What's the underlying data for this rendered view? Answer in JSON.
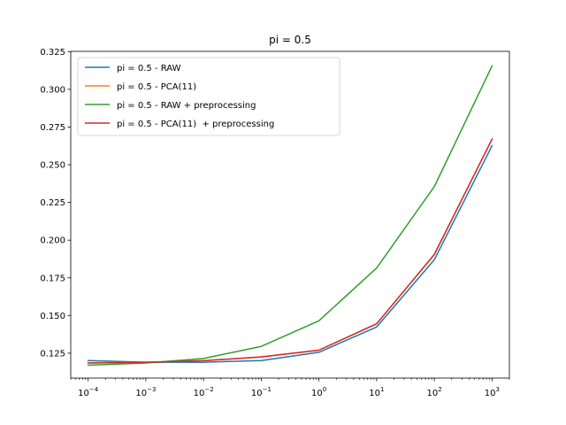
{
  "chart_data": {
    "type": "line",
    "title": "pi = 0.5",
    "xlabel": "",
    "ylabel": "",
    "x_scale": "log",
    "x": [
      0.0001,
      0.001,
      0.01,
      0.1,
      1,
      10,
      100,
      1000
    ],
    "xlim": [
      5e-05,
      2000
    ],
    "ylim": [
      0.1085,
      0.3252
    ],
    "x_ticks": [
      {
        "value": 0.0001,
        "base": "10",
        "exp": "−4"
      },
      {
        "value": 0.001,
        "base": "10",
        "exp": "−3"
      },
      {
        "value": 0.01,
        "base": "10",
        "exp": "−2"
      },
      {
        "value": 0.1,
        "base": "10",
        "exp": "−1"
      },
      {
        "value": 1,
        "base": "10",
        "exp": "0"
      },
      {
        "value": 10,
        "base": "10",
        "exp": "1"
      },
      {
        "value": 100,
        "base": "10",
        "exp": "2"
      },
      {
        "value": 1000,
        "base": "10",
        "exp": "3"
      }
    ],
    "y_ticks": [
      {
        "value": 0.125,
        "label": "0.125"
      },
      {
        "value": 0.15,
        "label": "0.150"
      },
      {
        "value": 0.175,
        "label": "0.175"
      },
      {
        "value": 0.2,
        "label": "0.200"
      },
      {
        "value": 0.225,
        "label": "0.225"
      },
      {
        "value": 0.25,
        "label": "0.250"
      },
      {
        "value": 0.275,
        "label": "0.275"
      },
      {
        "value": 0.3,
        "label": "0.300"
      },
      {
        "value": 0.325,
        "label": "0.325"
      }
    ],
    "grid": false,
    "legend_position": "top-left",
    "series": [
      {
        "name": "pi = 0.5 - RAW",
        "color": "#1f77b4",
        "values": [
          0.1201,
          0.119,
          0.119,
          0.1201,
          0.1256,
          0.1424,
          0.187,
          0.2626
        ]
      },
      {
        "name": "pi = 0.5 - PCA(11)",
        "color": "#ff7f0e",
        "values": [
          0.1185,
          0.119,
          0.12,
          0.1225,
          0.127,
          0.1445,
          0.1905,
          0.267
        ]
      },
      {
        "name": "pi = 0.5 - RAW + preprocessing",
        "color": "#2ca02c",
        "values": [
          0.117,
          0.1185,
          0.1215,
          0.1295,
          0.1465,
          0.1815,
          0.2355,
          0.3155
        ]
      },
      {
        "name": "pi = 0.5 - PCA(11)  + preprocessing",
        "color": "#d62728",
        "values": [
          0.1185,
          0.119,
          0.12,
          0.1225,
          0.127,
          0.1445,
          0.1905,
          0.267
        ]
      }
    ]
  }
}
